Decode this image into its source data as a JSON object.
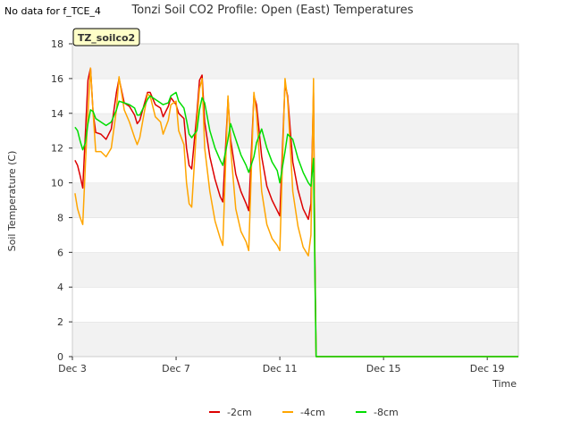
{
  "header": {
    "no_data_note": "No data for f_TCE_4"
  },
  "chart_data": {
    "type": "line",
    "title": "Tonzi Soil CO2 Profile: Open (East) Temperatures",
    "badge": "TZ_soilco2",
    "xlabel": "Time",
    "ylabel": "Soil Temperature (C)",
    "xlim": [
      3,
      20.2
    ],
    "ylim": [
      0,
      18
    ],
    "x_unit": "day of December",
    "x_ticks": [
      3,
      7,
      11,
      15,
      19
    ],
    "x_tick_labels": [
      "Dec 3",
      "Dec 7",
      "Dec 11",
      "Dec 15",
      "Dec 19"
    ],
    "y_ticks": [
      0,
      2,
      4,
      6,
      8,
      10,
      12,
      14,
      16,
      18
    ],
    "y_tick_labels": [
      "0",
      "2",
      "4",
      "6",
      "8",
      "10",
      "12",
      "14",
      "16",
      "18"
    ],
    "grid": true,
    "legend_position": "bottom-center",
    "series": [
      {
        "name": "-2cm",
        "color": "#dd0000",
        "points": [
          [
            3.1,
            11.3
          ],
          [
            3.2,
            11.0
          ],
          [
            3.3,
            10.4
          ],
          [
            3.4,
            9.7
          ],
          [
            3.5,
            12.8
          ],
          [
            3.6,
            15.9
          ],
          [
            3.7,
            16.6
          ],
          [
            3.8,
            14.0
          ],
          [
            3.9,
            12.9
          ],
          [
            4.1,
            12.8
          ],
          [
            4.3,
            12.5
          ],
          [
            4.5,
            13.1
          ],
          [
            4.7,
            15.2
          ],
          [
            4.8,
            16.0
          ],
          [
            5.0,
            14.6
          ],
          [
            5.2,
            14.4
          ],
          [
            5.4,
            13.9
          ],
          [
            5.5,
            13.4
          ],
          [
            5.6,
            13.6
          ],
          [
            5.9,
            15.2
          ],
          [
            6.0,
            15.2
          ],
          [
            6.2,
            14.5
          ],
          [
            6.4,
            14.3
          ],
          [
            6.5,
            13.8
          ],
          [
            6.7,
            14.4
          ],
          [
            6.8,
            14.9
          ],
          [
            7.0,
            14.5
          ],
          [
            7.1,
            14.0
          ],
          [
            7.3,
            13.7
          ],
          [
            7.4,
            12.0
          ],
          [
            7.5,
            11.0
          ],
          [
            7.6,
            10.8
          ],
          [
            7.8,
            14.0
          ],
          [
            7.9,
            15.9
          ],
          [
            8.0,
            16.2
          ],
          [
            8.1,
            13.5
          ],
          [
            8.3,
            11.5
          ],
          [
            8.5,
            10.2
          ],
          [
            8.7,
            9.2
          ],
          [
            8.8,
            8.9
          ],
          [
            9.0,
            14.8
          ],
          [
            9.1,
            12.5
          ],
          [
            9.3,
            10.5
          ],
          [
            9.5,
            9.5
          ],
          [
            9.7,
            8.8
          ],
          [
            9.8,
            8.4
          ],
          [
            10.0,
            15.0
          ],
          [
            10.1,
            14.5
          ],
          [
            10.3,
            11.5
          ],
          [
            10.5,
            9.8
          ],
          [
            10.7,
            9.0
          ],
          [
            10.9,
            8.4
          ],
          [
            11.0,
            8.1
          ],
          [
            11.2,
            15.7
          ],
          [
            11.3,
            15.0
          ],
          [
            11.5,
            11.2
          ],
          [
            11.7,
            9.6
          ],
          [
            11.9,
            8.5
          ],
          [
            12.1,
            7.9
          ],
          [
            12.2,
            8.8
          ],
          [
            12.3,
            15.2
          ],
          [
            12.35,
            6.0
          ],
          [
            12.4,
            0
          ],
          [
            20.2,
            0
          ]
        ]
      },
      {
        "name": "-4cm",
        "color": "#ffa500",
        "points": [
          [
            3.1,
            9.4
          ],
          [
            3.2,
            8.5
          ],
          [
            3.3,
            8.0
          ],
          [
            3.4,
            7.6
          ],
          [
            3.5,
            11.0
          ],
          [
            3.6,
            14.0
          ],
          [
            3.7,
            16.6
          ],
          [
            3.8,
            14.0
          ],
          [
            3.9,
            11.8
          ],
          [
            4.1,
            11.8
          ],
          [
            4.3,
            11.5
          ],
          [
            4.5,
            12.0
          ],
          [
            4.7,
            14.2
          ],
          [
            4.8,
            16.1
          ],
          [
            5.0,
            14.2
          ],
          [
            5.2,
            13.5
          ],
          [
            5.4,
            12.6
          ],
          [
            5.5,
            12.2
          ],
          [
            5.6,
            12.6
          ],
          [
            5.9,
            15.1
          ],
          [
            6.0,
            15.0
          ],
          [
            6.2,
            13.8
          ],
          [
            6.4,
            13.5
          ],
          [
            6.5,
            12.8
          ],
          [
            6.7,
            13.6
          ],
          [
            6.8,
            14.5
          ],
          [
            7.0,
            14.7
          ],
          [
            7.1,
            13.0
          ],
          [
            7.3,
            12.2
          ],
          [
            7.4,
            10.0
          ],
          [
            7.5,
            8.8
          ],
          [
            7.6,
            8.6
          ],
          [
            7.8,
            13.5
          ],
          [
            7.9,
            15.4
          ],
          [
            8.0,
            16.0
          ],
          [
            8.1,
            12.0
          ],
          [
            8.3,
            9.5
          ],
          [
            8.5,
            7.8
          ],
          [
            8.7,
            6.8
          ],
          [
            8.8,
            6.4
          ],
          [
            9.0,
            15.0
          ],
          [
            9.1,
            12.0
          ],
          [
            9.3,
            8.5
          ],
          [
            9.5,
            7.2
          ],
          [
            9.7,
            6.6
          ],
          [
            9.8,
            6.1
          ],
          [
            10.0,
            15.2
          ],
          [
            10.1,
            14.0
          ],
          [
            10.3,
            9.5
          ],
          [
            10.5,
            7.6
          ],
          [
            10.7,
            6.8
          ],
          [
            10.9,
            6.4
          ],
          [
            11.0,
            6.1
          ],
          [
            11.2,
            16.0
          ],
          [
            11.3,
            14.8
          ],
          [
            11.5,
            9.5
          ],
          [
            11.7,
            7.5
          ],
          [
            11.9,
            6.3
          ],
          [
            12.1,
            5.8
          ],
          [
            12.2,
            7.0
          ],
          [
            12.3,
            16.0
          ],
          [
            12.35,
            5.0
          ],
          [
            12.4,
            0
          ],
          [
            20.2,
            0
          ]
        ]
      },
      {
        "name": "-8cm",
        "color": "#00dd00",
        "points": [
          [
            3.1,
            13.2
          ],
          [
            3.2,
            13.0
          ],
          [
            3.3,
            12.4
          ],
          [
            3.4,
            11.9
          ],
          [
            3.5,
            12.3
          ],
          [
            3.6,
            13.4
          ],
          [
            3.7,
            14.2
          ],
          [
            3.8,
            14.1
          ],
          [
            3.9,
            13.7
          ],
          [
            4.1,
            13.5
          ],
          [
            4.3,
            13.3
          ],
          [
            4.5,
            13.5
          ],
          [
            4.7,
            14.2
          ],
          [
            4.8,
            14.7
          ],
          [
            5.0,
            14.6
          ],
          [
            5.2,
            14.5
          ],
          [
            5.4,
            14.3
          ],
          [
            5.5,
            13.9
          ],
          [
            5.6,
            13.9
          ],
          [
            5.9,
            14.8
          ],
          [
            6.0,
            15.0
          ],
          [
            6.2,
            14.8
          ],
          [
            6.4,
            14.6
          ],
          [
            6.5,
            14.5
          ],
          [
            6.7,
            14.6
          ],
          [
            6.8,
            15.0
          ],
          [
            7.0,
            15.2
          ],
          [
            7.1,
            14.7
          ],
          [
            7.3,
            14.3
          ],
          [
            7.4,
            13.6
          ],
          [
            7.5,
            12.8
          ],
          [
            7.6,
            12.6
          ],
          [
            7.8,
            13.0
          ],
          [
            7.9,
            14.2
          ],
          [
            8.0,
            14.9
          ],
          [
            8.1,
            14.6
          ],
          [
            8.3,
            13.0
          ],
          [
            8.5,
            12.0
          ],
          [
            8.7,
            11.3
          ],
          [
            8.8,
            11.0
          ],
          [
            9.0,
            12.5
          ],
          [
            9.1,
            13.4
          ],
          [
            9.3,
            12.5
          ],
          [
            9.5,
            11.6
          ],
          [
            9.7,
            11.0
          ],
          [
            9.8,
            10.6
          ],
          [
            10.0,
            11.5
          ],
          [
            10.1,
            12.3
          ],
          [
            10.3,
            13.1
          ],
          [
            10.5,
            12.0
          ],
          [
            10.7,
            11.2
          ],
          [
            10.9,
            10.7
          ],
          [
            11.0,
            10.0
          ],
          [
            11.2,
            11.8
          ],
          [
            11.3,
            12.8
          ],
          [
            11.5,
            12.5
          ],
          [
            11.7,
            11.4
          ],
          [
            11.9,
            10.6
          ],
          [
            12.1,
            10.0
          ],
          [
            12.2,
            9.8
          ],
          [
            12.3,
            11.4
          ],
          [
            12.35,
            5.0
          ],
          [
            12.4,
            0
          ],
          [
            20.2,
            0
          ]
        ]
      }
    ]
  }
}
